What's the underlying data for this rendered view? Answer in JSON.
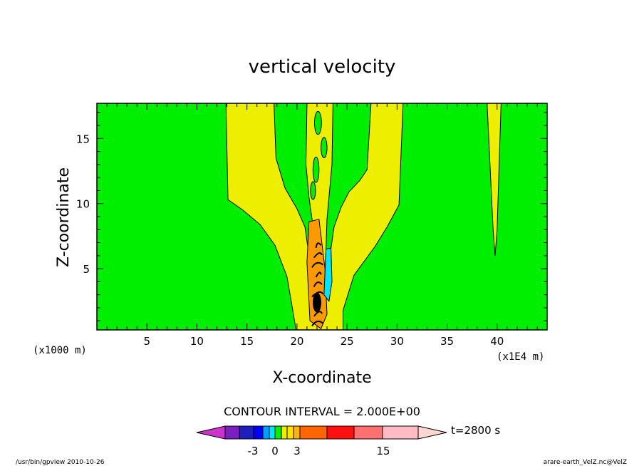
{
  "chart_data": {
    "type": "heatmap",
    "title": "vertical velocity",
    "xlabel": "X-coordinate",
    "ylabel": "Z-coordinate",
    "x_unit_left": "(x1000 m)",
    "x_unit_right": "(x1E4 m)",
    "xlim": [
      0,
      45
    ],
    "ylim": [
      0.3,
      17.7
    ],
    "x_ticks": [
      5,
      10,
      15,
      20,
      25,
      30,
      35,
      40
    ],
    "y_ticks": [
      5,
      10,
      15
    ],
    "contour_interval_label": "CONTOUR INTERVAL = 2.000E+00",
    "time_label": "t=2800 s",
    "colorbar_labels": [
      {
        "value": -3,
        "text": "-3"
      },
      {
        "value": 0,
        "text": "0"
      },
      {
        "value": 3,
        "text": "3"
      },
      {
        "value": 15,
        "text": "15"
      }
    ],
    "colorbar_colors": [
      "#cc33cc",
      "#7b1fc0",
      "#1f1fc0",
      "#0000ff",
      "#00a0ff",
      "#00e5ff",
      "#00ee00",
      "#eeee00",
      "#ffe200",
      "#ffb000",
      "#ff6600",
      "#ff1111",
      "#ff7070",
      "#ffbcc5",
      "#ffd6d0"
    ],
    "field_colors": {
      "background": "#00ee00",
      "positive_weak": "#eeee00",
      "positive_mid": "#ff9900",
      "negative": "#00e5ff",
      "contour_line": "#000000"
    },
    "grid": false
  },
  "footer": {
    "left": "/usr/bin/gpview  2010-10-26",
    "right": "arare-earth_VelZ.nc@VelZ"
  }
}
